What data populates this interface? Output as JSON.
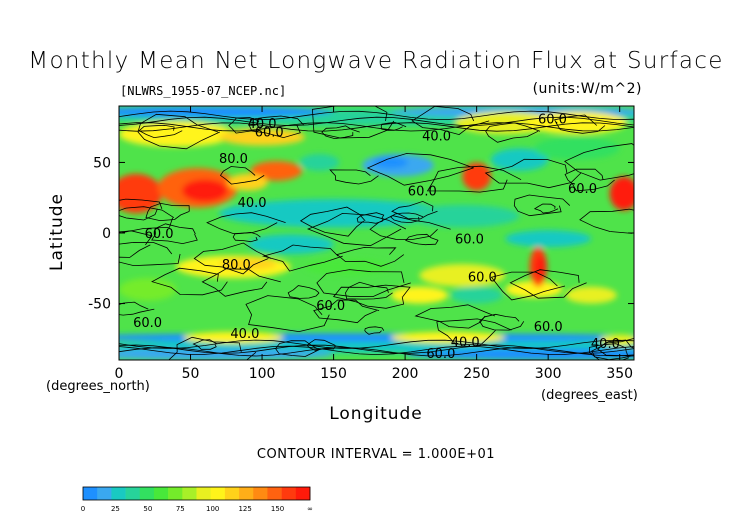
{
  "chart_data": {
    "type": "heatmap",
    "title": "Monthly Mean Net Longwave Radiation Flux at Surface",
    "source_file": "[NLWRS_1955-07_NCEP.nc]",
    "units_label": "(units:W/m^2)",
    "xlabel": "Longitude",
    "ylabel": "Latitude",
    "x_unit_note": "(degrees_east)",
    "y_unit_note": "(degrees_north)",
    "contour_interval_text": "CONTOUR INTERVAL = 1.000E+01",
    "xlim": [
      0,
      360
    ],
    "ylim": [
      -90,
      90
    ],
    "x_ticks": [
      0,
      50,
      100,
      150,
      200,
      250,
      300,
      350
    ],
    "y_ticks": [
      50,
      0,
      -50
    ],
    "colorbar": {
      "labels": [
        "0",
        "25",
        "50",
        "75",
        "100",
        "125",
        "150",
        "∞"
      ],
      "colors": [
        "#1e90ff",
        "#3aa8f0",
        "#19c9c2",
        "#27d39a",
        "#32e060",
        "#48e83a",
        "#74ec2a",
        "#a8f028",
        "#e8f020",
        "#fff41a",
        "#ffd21a",
        "#ffae18",
        "#ff8a12",
        "#ff6210",
        "#ff3a0e",
        "#ff1a0a"
      ]
    },
    "contour_labels": [
      {
        "text": "40.0",
        "lon": 100,
        "lat": 78
      },
      {
        "text": "60.0",
        "lon": 105,
        "lat": 72
      },
      {
        "text": "40.0",
        "lon": 222,
        "lat": 69
      },
      {
        "text": "60.0",
        "lon": 303,
        "lat": 81
      },
      {
        "text": "80.0",
        "lon": 80,
        "lat": 53
      },
      {
        "text": "40.0",
        "lon": 93,
        "lat": 22
      },
      {
        "text": "60.0",
        "lon": 212,
        "lat": 30
      },
      {
        "text": "60.0",
        "lon": 324,
        "lat": 32
      },
      {
        "text": "60.0",
        "lon": 28,
        "lat": 0
      },
      {
        "text": "60.0",
        "lon": 245,
        "lat": -4
      },
      {
        "text": "80.0",
        "lon": 82,
        "lat": -22
      },
      {
        "text": "60.0",
        "lon": 254,
        "lat": -31
      },
      {
        "text": "60.0",
        "lon": 148,
        "lat": -51
      },
      {
        "text": "60.0",
        "lon": 20,
        "lat": -63
      },
      {
        "text": "40.0",
        "lon": 88,
        "lat": -71
      },
      {
        "text": "60.0",
        "lon": 300,
        "lat": -66
      },
      {
        "text": "40.0",
        "lon": 242,
        "lat": -77
      },
      {
        "text": "40.0",
        "lon": 340,
        "lat": -78
      },
      {
        "text": "60.0",
        "lon": 225,
        "lat": -85
      }
    ]
  }
}
